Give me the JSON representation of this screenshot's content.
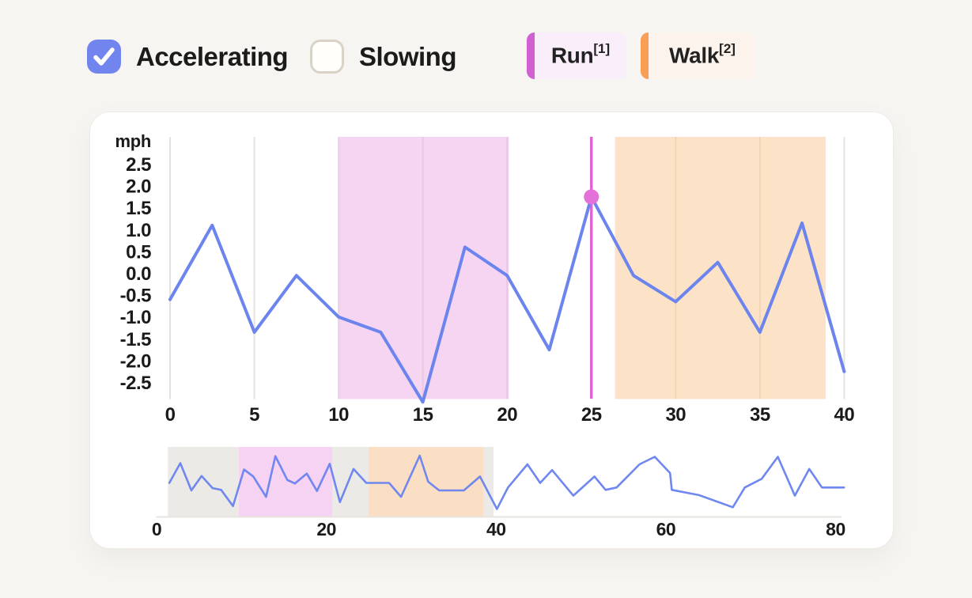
{
  "toolbar": {
    "accelerating": {
      "label": "Accelerating",
      "checked": true
    },
    "slowing": {
      "label": "Slowing",
      "checked": false
    },
    "legend": [
      {
        "name": "Run",
        "sup": "[1]",
        "accent": "#d160d2",
        "bg": "#f9eefa"
      },
      {
        "name": "Walk",
        "sup": "[2]",
        "accent": "#f99e55",
        "bg": "#fcf3ed"
      }
    ]
  },
  "colors": {
    "page_bg": "#f7f5f2",
    "card_bg": "#ffffff",
    "checkbox_blue": "#7285ef",
    "check_mark": "#ffffff",
    "grid": "#e5e2dc",
    "axis_text": "#1a1a1a",
    "mini_axis_line": "#e7e4df"
  },
  "chart_data": [
    {
      "type": "line",
      "id": "main-acceleration-chart",
      "title": "",
      "xlabel": "",
      "ylabel": "mph",
      "xlim": [
        0,
        40
      ],
      "ylim": [
        -2.9,
        3.1
      ],
      "grid": "vertical",
      "x_ticks": [
        "0",
        "5",
        "10",
        "15",
        "20",
        "25",
        "30",
        "35",
        "40"
      ],
      "x_tick_values": [
        0,
        5,
        10,
        15,
        20,
        25,
        30,
        35,
        40
      ],
      "y_ticks": [
        "2.5",
        "2.0",
        "1.5",
        "1.0",
        "0.5",
        "0.0",
        "-0.5",
        "-1.0",
        "-1.5",
        "-2.0",
        "-2.5"
      ],
      "y_tick_values": [
        2.5,
        2.0,
        1.5,
        1.0,
        0.5,
        0.0,
        -0.5,
        -1.0,
        -1.5,
        -2.0,
        -2.5
      ],
      "line_color": "#6c84ee",
      "x": [
        0,
        2.5,
        5,
        7.5,
        10,
        12.5,
        15,
        17.5,
        20,
        22.5,
        25,
        27.5,
        30,
        32.5,
        35,
        37.5,
        40
      ],
      "values": [
        -0.6,
        1.1,
        -1.35,
        -0.05,
        -1.0,
        -1.35,
        -2.95,
        0.6,
        -0.05,
        -1.75,
        1.75,
        -0.05,
        -0.65,
        0.25,
        -1.35,
        1.15,
        -2.25
      ],
      "regions": [
        {
          "label": "Run",
          "from": 10,
          "to": 20.1,
          "color": "rgba(236,178,232,0.55)"
        },
        {
          "label": "Walk",
          "from": 26.4,
          "to": 38.9,
          "color": "rgba(250,197,142,0.5)"
        }
      ],
      "marker": {
        "x": 25,
        "value": 1.75,
        "line_color": "#e063d2",
        "dot_color": "#e471d9"
      }
    },
    {
      "type": "line",
      "id": "overview-brush-chart",
      "xlim": [
        0,
        81
      ],
      "ylim": [
        -3,
        3
      ],
      "x_ticks": [
        "0",
        "20",
        "40",
        "60",
        "80"
      ],
      "x_tick_values": [
        0,
        20,
        40,
        60,
        80
      ],
      "line_color": "#6f87ef",
      "selection": {
        "from": 1.33,
        "to": 39.7,
        "color": "#eceae6"
      },
      "regions": [
        {
          "label": "Run",
          "from": 9.7,
          "to": 20.7,
          "color": "#f6d2f3"
        },
        {
          "label": "Walk",
          "from": 25,
          "to": 38.5,
          "color": "#fbdfc5"
        }
      ],
      "points": [
        [
          1.5,
          -0.1
        ],
        [
          2.8,
          1.6
        ],
        [
          4.1,
          -0.75
        ],
        [
          5.3,
          0.5
        ],
        [
          6.6,
          -0.55
        ],
        [
          7.6,
          -0.7
        ],
        [
          9,
          -2.1
        ],
        [
          10.3,
          1.05
        ],
        [
          11.4,
          0.45
        ],
        [
          12.9,
          -1.3
        ],
        [
          14,
          2.2
        ],
        [
          15.4,
          0.15
        ],
        [
          16.3,
          -0.15
        ],
        [
          17.7,
          0.7
        ],
        [
          18.9,
          -0.8
        ],
        [
          20.4,
          1.55
        ],
        [
          21.6,
          -1.75
        ],
        [
          23.2,
          1.1
        ],
        [
          24.7,
          -0.1
        ],
        [
          27.4,
          -0.1
        ],
        [
          28.8,
          -1.3
        ],
        [
          31,
          2.25
        ],
        [
          32,
          0
        ],
        [
          33.3,
          -0.75
        ],
        [
          36.2,
          -0.75
        ],
        [
          38.1,
          0.45
        ],
        [
          40.1,
          -2.35
        ],
        [
          41.4,
          -0.5
        ],
        [
          43.7,
          1.5
        ],
        [
          45.2,
          -0.1
        ],
        [
          46.6,
          1.0
        ],
        [
          49.1,
          -1.2
        ],
        [
          51.6,
          0.45
        ],
        [
          52.9,
          -0.7
        ],
        [
          54.2,
          -0.5
        ],
        [
          56.9,
          1.5
        ],
        [
          58.7,
          2.15
        ],
        [
          60.5,
          0.75
        ],
        [
          60.7,
          -0.7
        ],
        [
          63.9,
          -1.15
        ],
        [
          67.9,
          -2.2
        ],
        [
          69.3,
          -0.5
        ],
        [
          71.3,
          0.25
        ],
        [
          73.2,
          2.15
        ],
        [
          75.2,
          -1.2
        ],
        [
          76.9,
          1.1
        ],
        [
          78.4,
          -0.5
        ],
        [
          81,
          -0.5
        ]
      ]
    }
  ]
}
